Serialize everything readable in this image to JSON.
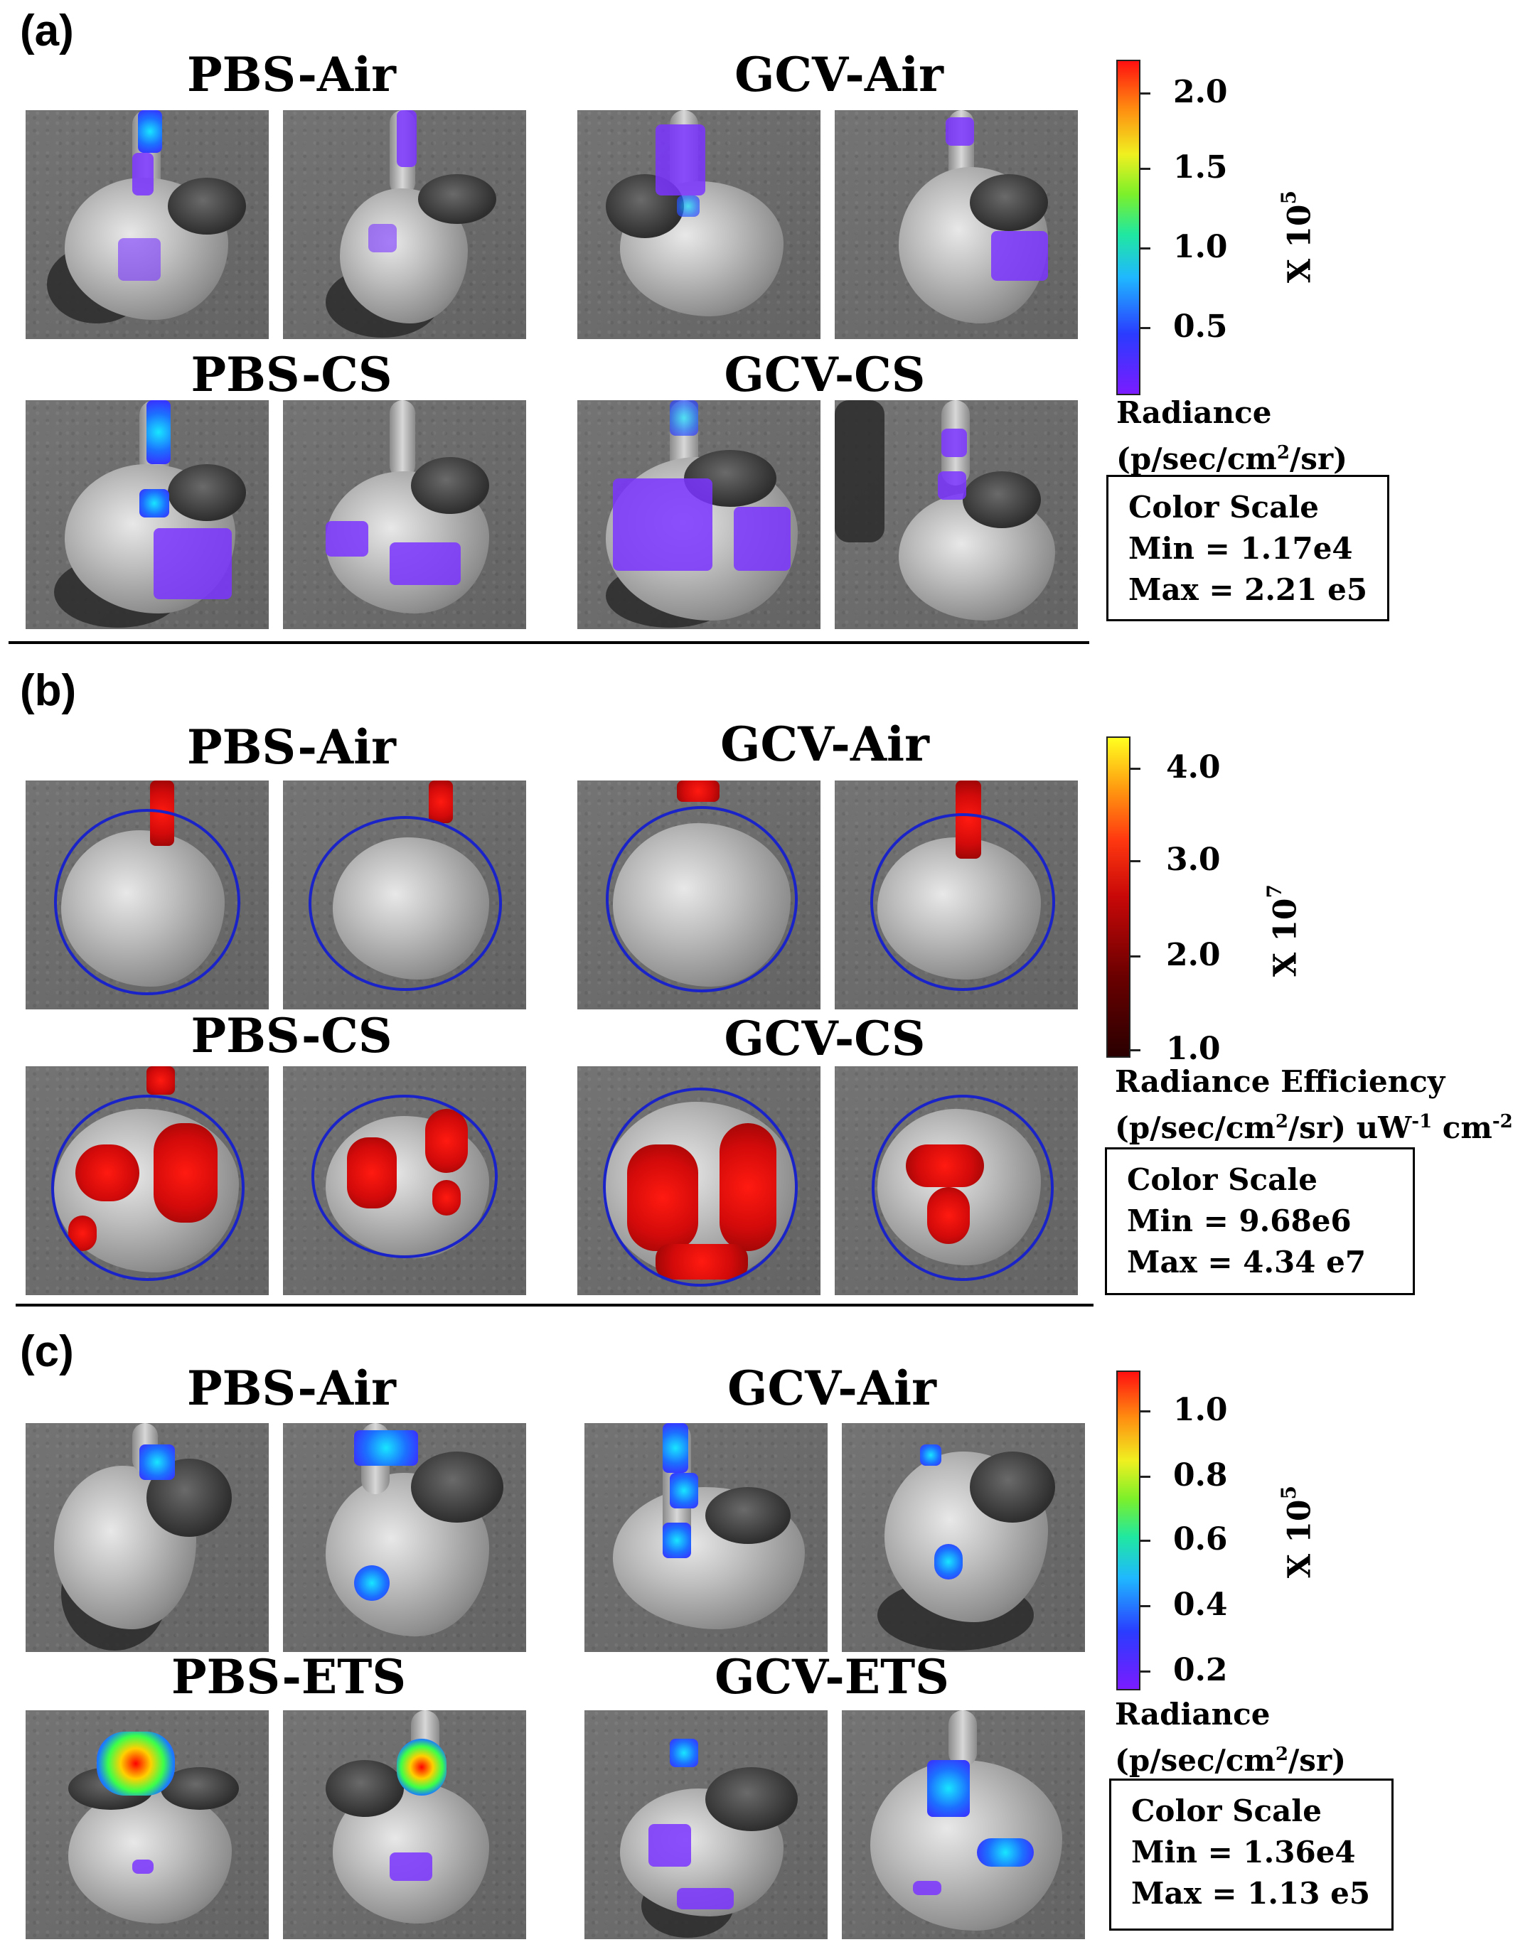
{
  "panels": [
    {
      "letter": "(a)",
      "groups": [
        "PBS-Air",
        "GCV-Air",
        "PBS-CS",
        "GCV-CS"
      ],
      "scale_multiplier": "X 10",
      "scale_exponent": "5",
      "ticks": [
        "2.0",
        "1.5",
        "1.0",
        "0.5"
      ],
      "units_line1": "Radiance",
      "units_line2": "(p/sec/cm",
      "units_sup": "2",
      "units_line2_end": "/sr)",
      "cs_title": "Color Scale",
      "cs_min": "Min = 1.17e4",
      "cs_max": "Max = 2.21 e5",
      "colormap": "purple-blue-cyan-green-yellow-red"
    },
    {
      "letter": "(b)",
      "groups": [
        "PBS-Air",
        "GCV-Air",
        "PBS-CS",
        "GCV-CS"
      ],
      "scale_multiplier": "X 10",
      "scale_exponent": "7",
      "ticks": [
        "4.0",
        "3.0",
        "2.0",
        "1.0"
      ],
      "units_line1": "Radiance Efficiency",
      "units_line2": "(p/sec/cm",
      "units_sup": "2",
      "units_line2_end": "/sr) uW",
      "units_sup2": "-1",
      "units_line2_tail": " cm",
      "units_sup3": "-2",
      "cs_title": "Color Scale",
      "cs_min": "Min = 9.68e6",
      "cs_max": "Max = 4.34 e7",
      "colormap": "black-red-orange-yellow"
    },
    {
      "letter": "(c)",
      "groups": [
        "PBS-Air",
        "GCV-Air",
        "PBS-ETS",
        "GCV-ETS"
      ],
      "scale_multiplier": "X 10",
      "scale_exponent": "5",
      "ticks": [
        "1.0",
        "0.8",
        "0.6",
        "0.4",
        "0.2"
      ],
      "units_line1": "Radiance",
      "units_line2": "(p/sec/cm",
      "units_sup": "2",
      "units_line2_end": "/sr)",
      "cs_title": "Color Scale",
      "cs_min": "Min = 1.36e4",
      "cs_max": "Max = 1.13 e5",
      "colormap": "purple-blue-cyan-green-yellow-red"
    }
  ],
  "colors": {
    "roi_circle": "#1a23c8",
    "background": "#ffffff"
  }
}
